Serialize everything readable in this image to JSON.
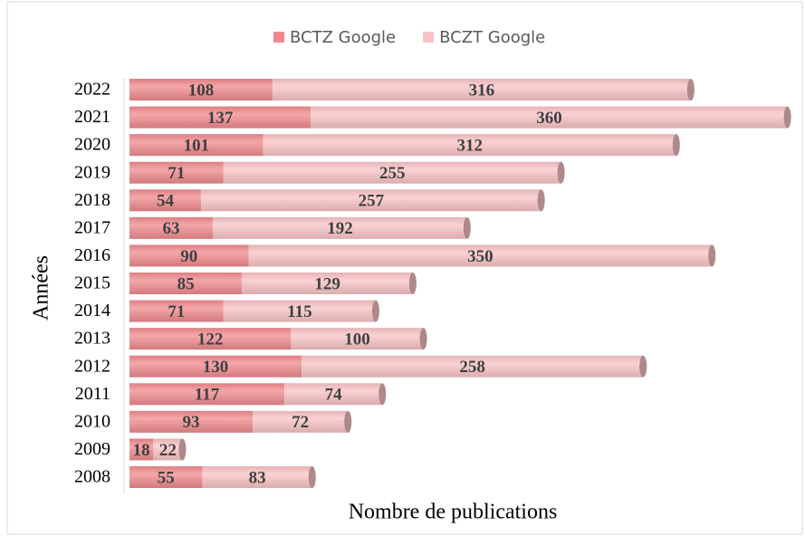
{
  "chart_data": {
    "type": "bar",
    "orientation": "horizontal",
    "stacked": true,
    "x_label": "Nombre de publications",
    "y_label": "Années",
    "categories": [
      "2008",
      "2009",
      "2010",
      "2011",
      "2012",
      "2013",
      "2014",
      "2015",
      "2016",
      "2017",
      "2018",
      "2019",
      "2020",
      "2021",
      "2022"
    ],
    "series": [
      {
        "name": "BCTZ Google",
        "color": "#f0898e",
        "values": [
          55,
          18,
          93,
          117,
          130,
          122,
          71,
          85,
          90,
          63,
          54,
          71,
          101,
          137,
          108
        ]
      },
      {
        "name": "BCZT Google",
        "color": "#f9c3c6",
        "values": [
          83,
          22,
          72,
          74,
          258,
          100,
          115,
          129,
          350,
          192,
          257,
          255,
          312,
          360,
          316
        ]
      }
    ],
    "xlim": [
      0,
      500
    ],
    "legend": "top"
  }
}
